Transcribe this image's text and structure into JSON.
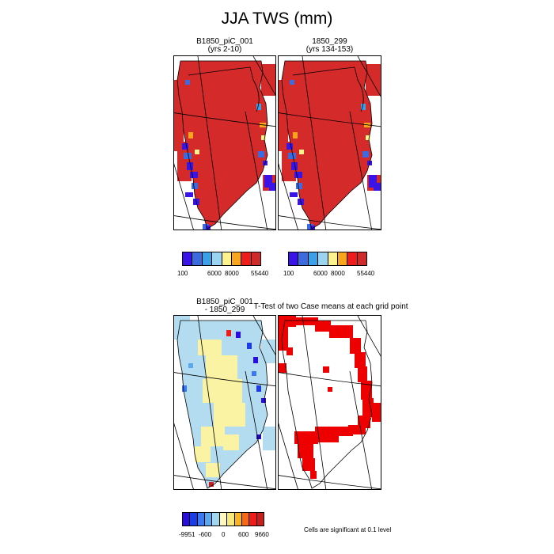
{
  "title": "JJA TWS (mm)",
  "panels": [
    {
      "title_line1": "B1850_piC_001",
      "title_line2": "(yrs 2-10)"
    },
    {
      "title_line1": "1850_299",
      "title_line2": "(yrs 134-153)"
    },
    {
      "title_line1": "B1850_piC_001",
      "title_line2": "- 1850_299"
    },
    {
      "title_line1": "T-Test of two Case means at each grid point",
      "title_line2": ""
    }
  ],
  "colorbar_top": {
    "colors": [
      "#3a14e6",
      "#3c6be0",
      "#3ca0e6",
      "#9ad4f0",
      "#fdf38e",
      "#f7a61e",
      "#ef1c1c",
      "#cf2a2a"
    ],
    "ticks": [
      "100",
      "6000",
      "8000",
      "55440"
    ]
  },
  "colorbar_bottom": {
    "colors": [
      "#2a0ee0",
      "#1c3ce6",
      "#3c78f0",
      "#5aa8f0",
      "#a2d6f0",
      "#fdf8c0",
      "#f8ea7a",
      "#f7b41e",
      "#f46a1a",
      "#ef1c1c",
      "#cc1c1c"
    ],
    "ticks": [
      "-9951",
      "-600",
      "0",
      "600",
      "9660"
    ]
  },
  "note": "Cells are significant at 0.1 level",
  "colors": {
    "ice": "#d42a2a",
    "sig": "#ee0000",
    "diff_pos": "#fbf3a4",
    "diff_neg": "#b4dcf0"
  }
}
